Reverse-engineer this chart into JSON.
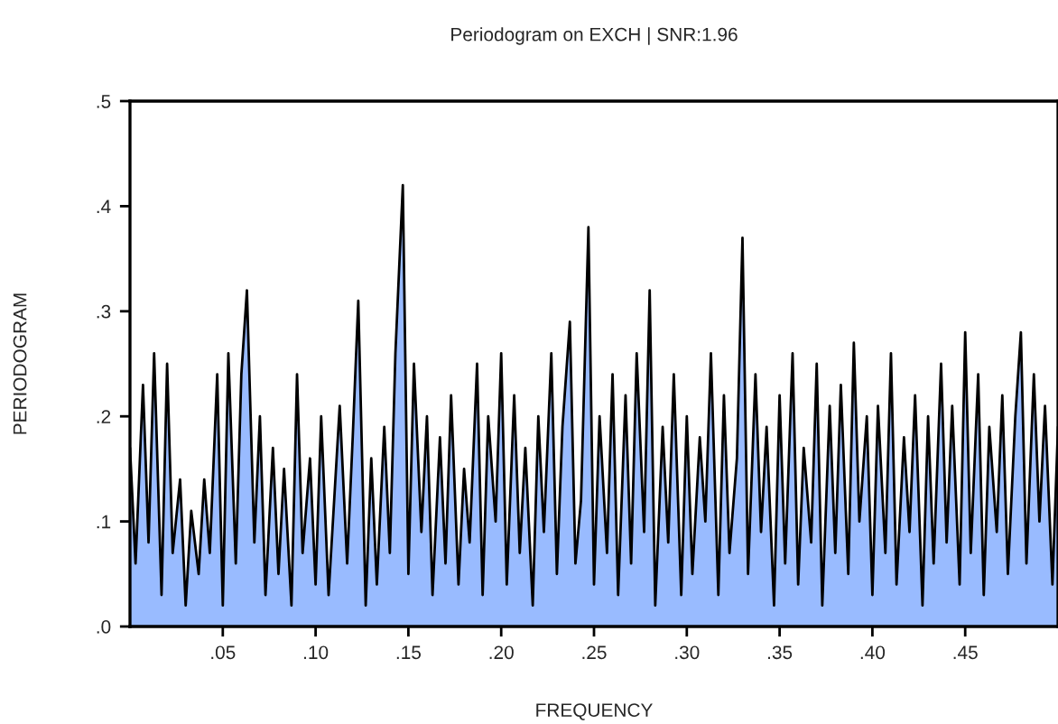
{
  "chart_data": {
    "type": "area",
    "title": "Periodogram on EXCH | SNR:1.96",
    "xlabel": "FREQUENCY",
    "ylabel": "PERIODOGRAM",
    "xlim": [
      0,
      0.5
    ],
    "ylim": [
      0,
      0.5
    ],
    "xticks": [
      {
        "value": 0.05,
        "label": ".05"
      },
      {
        "value": 0.1,
        "label": ".10"
      },
      {
        "value": 0.15,
        "label": ".15"
      },
      {
        "value": 0.2,
        "label": ".20"
      },
      {
        "value": 0.25,
        "label": ".25"
      },
      {
        "value": 0.3,
        "label": ".30"
      },
      {
        "value": 0.35,
        "label": ".35"
      },
      {
        "value": 0.4,
        "label": ".40"
      },
      {
        "value": 0.45,
        "label": ".45"
      }
    ],
    "yticks": [
      {
        "value": 0,
        "label": ".0"
      },
      {
        "value": 0.1,
        "label": ".1"
      },
      {
        "value": 0.2,
        "label": ".2"
      },
      {
        "value": 0.3,
        "label": ".3"
      },
      {
        "value": 0.4,
        "label": ".4"
      },
      {
        "value": 0.5,
        "label": ".5"
      }
    ],
    "grid": false,
    "legend": false,
    "series": [
      {
        "color": "#99bbff",
        "x": [
          0.0,
          0.003,
          0.007,
          0.01,
          0.013,
          0.017,
          0.02,
          0.023,
          0.027,
          0.03,
          0.033,
          0.037,
          0.04,
          0.043,
          0.047,
          0.05,
          0.053,
          0.057,
          0.06,
          0.063,
          0.067,
          0.07,
          0.073,
          0.077,
          0.08,
          0.083,
          0.087,
          0.09,
          0.093,
          0.097,
          0.1,
          0.103,
          0.107,
          0.11,
          0.113,
          0.117,
          0.12,
          0.123,
          0.127,
          0.13,
          0.133,
          0.137,
          0.14,
          0.143,
          0.147,
          0.15,
          0.153,
          0.157,
          0.16,
          0.163,
          0.167,
          0.17,
          0.173,
          0.177,
          0.18,
          0.183,
          0.187,
          0.19,
          0.193,
          0.197,
          0.2,
          0.203,
          0.207,
          0.21,
          0.213,
          0.217,
          0.22,
          0.223,
          0.227,
          0.23,
          0.233,
          0.237,
          0.24,
          0.243,
          0.247,
          0.25,
          0.253,
          0.257,
          0.26,
          0.263,
          0.267,
          0.27,
          0.273,
          0.277,
          0.28,
          0.283,
          0.287,
          0.29,
          0.293,
          0.297,
          0.3,
          0.303,
          0.307,
          0.31,
          0.313,
          0.317,
          0.32,
          0.323,
          0.327,
          0.33,
          0.333,
          0.337,
          0.34,
          0.343,
          0.347,
          0.35,
          0.353,
          0.357,
          0.36,
          0.363,
          0.367,
          0.37,
          0.373,
          0.377,
          0.38,
          0.383,
          0.387,
          0.39,
          0.393,
          0.397,
          0.4,
          0.403,
          0.407,
          0.41,
          0.413,
          0.417,
          0.42,
          0.423,
          0.427,
          0.43,
          0.433,
          0.437,
          0.44,
          0.443,
          0.447,
          0.45,
          0.453,
          0.457,
          0.46,
          0.463,
          0.467,
          0.47,
          0.473,
          0.477,
          0.48,
          0.483,
          0.487,
          0.49,
          0.493,
          0.497,
          0.5
        ],
        "values": [
          0.17,
          0.06,
          0.23,
          0.08,
          0.26,
          0.03,
          0.25,
          0.07,
          0.14,
          0.02,
          0.11,
          0.05,
          0.14,
          0.07,
          0.24,
          0.02,
          0.26,
          0.06,
          0.24,
          0.32,
          0.08,
          0.2,
          0.03,
          0.17,
          0.05,
          0.15,
          0.02,
          0.24,
          0.07,
          0.16,
          0.04,
          0.2,
          0.03,
          0.12,
          0.21,
          0.06,
          0.18,
          0.31,
          0.02,
          0.16,
          0.04,
          0.19,
          0.07,
          0.26,
          0.42,
          0.05,
          0.25,
          0.09,
          0.2,
          0.03,
          0.18,
          0.06,
          0.22,
          0.04,
          0.15,
          0.08,
          0.25,
          0.03,
          0.2,
          0.1,
          0.26,
          0.04,
          0.22,
          0.07,
          0.17,
          0.02,
          0.2,
          0.09,
          0.26,
          0.05,
          0.19,
          0.29,
          0.06,
          0.12,
          0.38,
          0.04,
          0.2,
          0.07,
          0.24,
          0.03,
          0.22,
          0.06,
          0.26,
          0.09,
          0.32,
          0.02,
          0.19,
          0.08,
          0.24,
          0.03,
          0.2,
          0.05,
          0.18,
          0.1,
          0.26,
          0.03,
          0.22,
          0.07,
          0.16,
          0.37,
          0.05,
          0.24,
          0.09,
          0.19,
          0.02,
          0.22,
          0.06,
          0.26,
          0.04,
          0.17,
          0.08,
          0.25,
          0.02,
          0.21,
          0.07,
          0.23,
          0.05,
          0.27,
          0.1,
          0.2,
          0.03,
          0.21,
          0.07,
          0.26,
          0.04,
          0.18,
          0.09,
          0.22,
          0.02,
          0.2,
          0.06,
          0.25,
          0.08,
          0.21,
          0.04,
          0.28,
          0.07,
          0.24,
          0.03,
          0.19,
          0.09,
          0.22,
          0.05,
          0.2,
          0.28,
          0.06,
          0.24,
          0.1,
          0.21,
          0.04,
          0.19
        ]
      }
    ]
  }
}
